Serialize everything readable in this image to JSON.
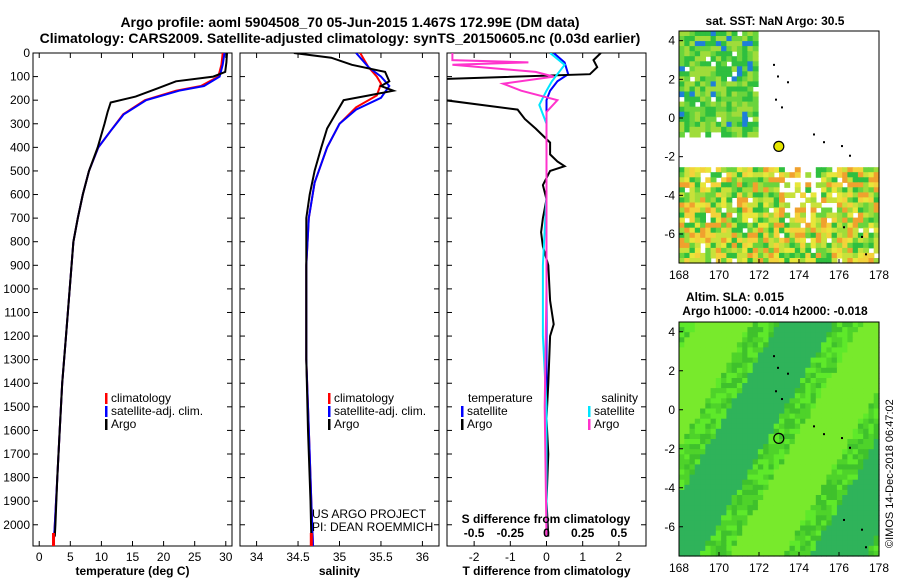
{
  "title_line1": "Argo profile: aoml 5904508_70 05-Jun-2015 1.467S 172.99E (DM data)",
  "title_line2": "Climatology: CARS2009. Satellite-adjusted climatology: synTS_20150605.nc (0.03d earlier)",
  "credit": [
    "US ARGO PROJECT",
    "PI: DEAN ROEMMICH"
  ],
  "imos_stamp": "©IMOS 14-Dec-2018 06:47:02",
  "map_sst_title": "sat. SST: NaN Argo: 30.5",
  "map_sla_title": [
    "Altim. SLA: 0.015",
    "Argo h1000: -0.014 h2000: -0.018"
  ],
  "colors": {
    "climatology": "#ff0000",
    "satellite": "#0000ff",
    "argo": "#000000",
    "sat_salinity": "#00e5ff",
    "s_argo": "#ff33cc"
  },
  "chart_data": [
    {
      "type": "line",
      "name": "temperature-profile",
      "xlabel": "temperature (deg C)",
      "ylabel": "depth",
      "xlim": [
        -1,
        31
      ],
      "ylim": [
        2090,
        0
      ],
      "xticks": [
        0,
        5,
        10,
        15,
        20,
        25,
        30
      ],
      "yticks": [
        0,
        100,
        200,
        300,
        400,
        500,
        600,
        700,
        800,
        900,
        1000,
        1100,
        1200,
        1300,
        1400,
        1500,
        1600,
        1700,
        1800,
        1900,
        2000
      ],
      "legend": [
        "climatology",
        "satellite-adj. clim.",
        "Argo"
      ],
      "series": [
        {
          "name": "climatology",
          "color": "#ff0000",
          "points": [
            [
              29.5,
              0
            ],
            [
              29.3,
              50
            ],
            [
              28.8,
              100
            ],
            [
              26,
              140
            ],
            [
              22,
              160
            ],
            [
              17,
              200
            ],
            [
              13.5,
              260
            ],
            [
              11.5,
              330
            ],
            [
              9.5,
              400
            ],
            [
              8,
              500
            ],
            [
              7,
              600
            ],
            [
              6.2,
              700
            ],
            [
              5.5,
              800
            ],
            [
              4.9,
              1000
            ],
            [
              4.3,
              1200
            ],
            [
              3.7,
              1400
            ],
            [
              3.3,
              1600
            ],
            [
              2.9,
              1800
            ],
            [
              2.5,
              2000
            ],
            [
              2.3,
              2090
            ]
          ]
        },
        {
          "name": "satellite",
          "color": "#0000ff",
          "points": [
            [
              29.8,
              0
            ],
            [
              29.5,
              50
            ],
            [
              29,
              100
            ],
            [
              26.5,
              140
            ],
            [
              22.5,
              160
            ],
            [
              17.2,
              200
            ],
            [
              13.6,
              260
            ],
            [
              11.5,
              330
            ],
            [
              9.5,
              400
            ],
            [
              8,
              500
            ],
            [
              7,
              600
            ],
            [
              6.2,
              700
            ],
            [
              5.5,
              800
            ],
            [
              4.9,
              1000
            ],
            [
              4.3,
              1200
            ],
            [
              3.7,
              1400
            ],
            [
              3.3,
              1600
            ],
            [
              2.9,
              1800
            ],
            [
              2.5,
              2000
            ],
            [
              2.3,
              2090
            ]
          ]
        },
        {
          "name": "Argo",
          "color": "#000000",
          "points": [
            [
              30.2,
              0
            ],
            [
              30.1,
              40
            ],
            [
              29.9,
              80
            ],
            [
              28,
              100
            ],
            [
              22,
              120
            ],
            [
              19,
              150
            ],
            [
              15.5,
              185
            ],
            [
              11.5,
              210
            ],
            [
              11,
              250
            ],
            [
              10.5,
              300
            ],
            [
              9.4,
              400
            ],
            [
              8,
              500
            ],
            [
              7,
              600
            ],
            [
              6.2,
              700
            ],
            [
              5.5,
              800
            ],
            [
              4.9,
              1000
            ],
            [
              4.3,
              1200
            ],
            [
              3.7,
              1400
            ],
            [
              3.3,
              1600
            ],
            [
              2.9,
              1800
            ],
            [
              2.6,
              2000
            ],
            [
              2.5,
              2050
            ]
          ]
        }
      ]
    },
    {
      "type": "line",
      "name": "salinity-profile",
      "xlabel": "salinity",
      "ylabel": "depth",
      "xlim": [
        33.8,
        36.2
      ],
      "ylim": [
        2090,
        0
      ],
      "xticks": [
        34,
        34.5,
        35,
        35.5,
        36
      ],
      "legend": [
        "climatology",
        "satellite-adj. clim.",
        "Argo"
      ],
      "series": [
        {
          "name": "climatology",
          "color": "#ff0000",
          "points": [
            [
              35.25,
              0
            ],
            [
              35.35,
              60
            ],
            [
              35.45,
              100
            ],
            [
              35.5,
              130
            ],
            [
              35.45,
              180
            ],
            [
              35.2,
              230
            ],
            [
              35,
              300
            ],
            [
              34.85,
              400
            ],
            [
              34.7,
              550
            ],
            [
              34.63,
              700
            ],
            [
              34.6,
              900
            ],
            [
              34.6,
              1100
            ],
            [
              34.6,
              1300
            ],
            [
              34.62,
              1500
            ],
            [
              34.64,
              1700
            ],
            [
              34.66,
              1900
            ],
            [
              34.68,
              2090
            ]
          ]
        },
        {
          "name": "satellite",
          "color": "#0000ff",
          "points": [
            [
              35.2,
              0
            ],
            [
              35.35,
              60
            ],
            [
              35.5,
              100
            ],
            [
              35.6,
              140
            ],
            [
              35.5,
              190
            ],
            [
              35.2,
              240
            ],
            [
              35,
              300
            ],
            [
              34.85,
              400
            ],
            [
              34.7,
              550
            ],
            [
              34.63,
              700
            ],
            [
              34.6,
              900
            ],
            [
              34.6,
              1100
            ],
            [
              34.6,
              1300
            ],
            [
              34.62,
              1500
            ],
            [
              34.64,
              1700
            ],
            [
              34.66,
              1900
            ],
            [
              34.68,
              2090
            ]
          ]
        },
        {
          "name": "Argo",
          "color": "#000000",
          "points": [
            [
              34.45,
              0
            ],
            [
              34.9,
              20
            ],
            [
              35.15,
              50
            ],
            [
              35.55,
              80
            ],
            [
              35.6,
              120
            ],
            [
              35.5,
              140
            ],
            [
              35.65,
              160
            ],
            [
              35.35,
              180
            ],
            [
              35.05,
              200
            ],
            [
              34.95,
              260
            ],
            [
              34.85,
              320
            ],
            [
              34.78,
              400
            ],
            [
              34.7,
              500
            ],
            [
              34.64,
              600
            ],
            [
              34.6,
              700
            ],
            [
              34.6,
              1000
            ],
            [
              34.6,
              1300
            ],
            [
              34.62,
              1600
            ],
            [
              34.65,
              1900
            ],
            [
              34.66,
              2050
            ]
          ]
        }
      ]
    },
    {
      "type": "line",
      "name": "difference-profile",
      "xlabel": "T difference from climatology",
      "xlabel_top": "S difference from climatology",
      "xlim": [
        -2.75,
        2.75
      ],
      "ylim": [
        2090,
        0
      ],
      "xticks": [
        -2,
        -1,
        0,
        1,
        2
      ],
      "xticks_top": [
        "-0.5",
        "-0.25",
        "0",
        "0.25",
        "0.5"
      ],
      "legend_left": [
        "temperature",
        "satellite",
        "Argo"
      ],
      "legend_right": [
        "salinity",
        "satellite",
        "Argo"
      ],
      "series": [
        {
          "name": "T satellite",
          "color": "#0000ff",
          "points": [
            [
              0.2,
              0
            ],
            [
              0.5,
              40
            ],
            [
              0.6,
              90
            ],
            [
              0.3,
              120
            ],
            [
              0.1,
              160
            ],
            [
              0,
              200
            ],
            [
              0,
              300
            ],
            [
              0,
              600
            ],
            [
              0,
              1000
            ],
            [
              0,
              1500
            ],
            [
              0,
              2050
            ]
          ]
        },
        {
          "name": "T Argo",
          "color": "#000000",
          "points": [
            [
              1.5,
              0
            ],
            [
              1.3,
              30
            ],
            [
              1.4,
              60
            ],
            [
              1.2,
              90
            ],
            [
              -2.8,
              110
            ],
            [
              -2.8,
              200
            ],
            [
              -0.8,
              240
            ],
            [
              -0.6,
              280
            ],
            [
              -0.3,
              320
            ],
            [
              0.1,
              380
            ],
            [
              0.1,
              430
            ],
            [
              0.3,
              460
            ],
            [
              0.5,
              480
            ],
            [
              0.1,
              500
            ],
            [
              -0.1,
              560
            ],
            [
              0,
              620
            ],
            [
              -0.1,
              700
            ],
            [
              -0.15,
              760
            ],
            [
              -0.1,
              820
            ],
            [
              0.05,
              900
            ],
            [
              0.1,
              1050
            ],
            [
              0.15,
              1100
            ],
            [
              0.2,
              1150
            ],
            [
              0.1,
              1200
            ],
            [
              0.05,
              1400
            ],
            [
              0,
              1550
            ],
            [
              0.05,
              1700
            ],
            [
              0,
              1900
            ],
            [
              0.05,
              2050
            ]
          ]
        },
        {
          "name": "S satellite",
          "color": "#00e5ff",
          "points": [
            [
              0.1,
              0
            ],
            [
              0.5,
              50
            ],
            [
              0.15,
              120
            ],
            [
              0,
              160
            ],
            [
              -0.2,
              220
            ],
            [
              0,
              300
            ],
            [
              0,
              600
            ],
            [
              -0.1,
              900
            ],
            [
              -0.1,
              1200
            ],
            [
              0,
              1500
            ],
            [
              0,
              2050
            ]
          ]
        },
        {
          "name": "S Argo",
          "color": "#ff33cc",
          "points": [
            [
              -2.6,
              0
            ],
            [
              -2.6,
              30
            ],
            [
              -0.5,
              40
            ],
            [
              -2.6,
              50
            ],
            [
              -0.3,
              80
            ],
            [
              0.2,
              100
            ],
            [
              -1.2,
              130
            ],
            [
              -0.7,
              160
            ],
            [
              0.3,
              200
            ],
            [
              0,
              250
            ],
            [
              0,
              600
            ],
            [
              0,
              1000
            ],
            [
              -0.05,
              1500
            ],
            [
              0,
              2050
            ]
          ]
        }
      ]
    },
    {
      "type": "heatmap",
      "name": "sst-map",
      "title": "sat. SST: NaN Argo: 30.5",
      "xlim": [
        168,
        178
      ],
      "ylim": [
        -7.5,
        4.5
      ],
      "xticks": [
        168,
        170,
        172,
        174,
        176,
        178
      ],
      "yticks": [
        4,
        2,
        0,
        -2,
        -4,
        -6
      ],
      "marker": {
        "lon": 172.99,
        "lat": -1.467
      }
    },
    {
      "type": "heatmap",
      "name": "sla-map",
      "title": "Altim. SLA: 0.015",
      "xlim": [
        168,
        178
      ],
      "ylim": [
        -7.5,
        4.5
      ],
      "xticks": [
        168,
        170,
        172,
        174,
        176,
        178
      ],
      "yticks": [
        4,
        2,
        0,
        -2,
        -4,
        -6
      ],
      "marker": {
        "lon": 172.99,
        "lat": -1.467
      }
    }
  ]
}
